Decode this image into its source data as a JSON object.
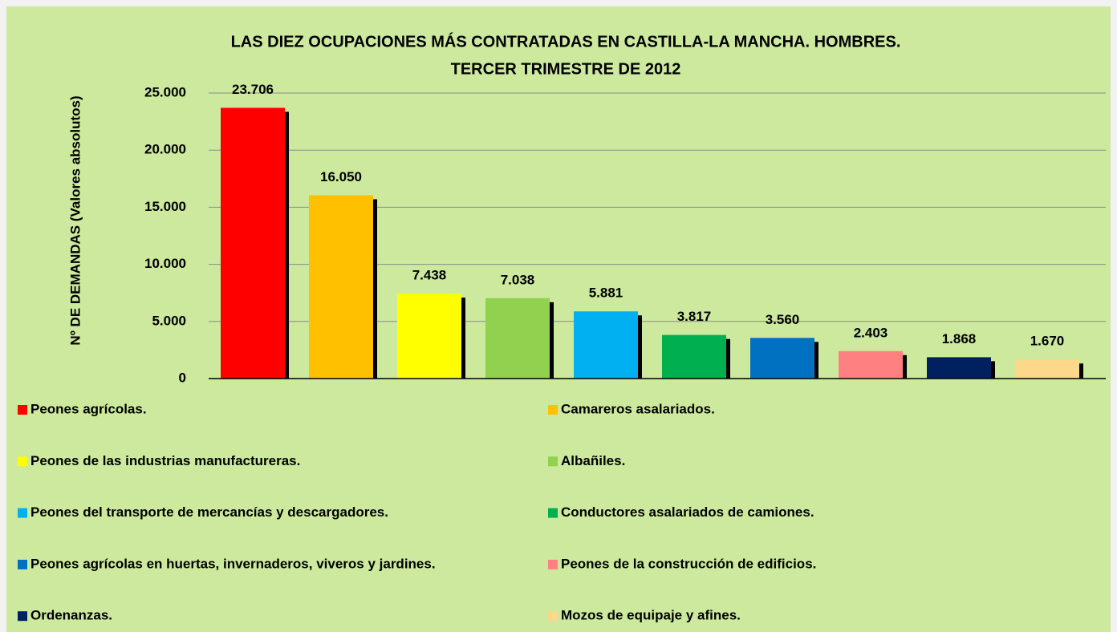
{
  "chart_data": {
    "type": "bar",
    "title": [
      "LAS DIEZ OCUPACIONES MÁS CONTRATADAS EN CASTILLA-LA MANCHA. HOMBRES.",
      "TERCER TRIMESTRE DE 2012"
    ],
    "y_label": "Nº DE DEMANDAS (Valores absolutos)",
    "categories": [
      "Peones agrícolas.",
      "Camareros asalariados.",
      "Peones de las industrias manufactureras.",
      "Albañiles.",
      "Peones del transporte de mercancías y descargadores.",
      "Conductores asalariados de camiones.",
      "Peones agrícolas en huertas, invernaderos, viveros y jardines.",
      "Peones de la construcción de edificios.",
      "Ordenanzas.",
      "Mozos de equipaje y afines."
    ],
    "values": [
      23706,
      16050,
      7438,
      7038,
      5881,
      3817,
      3560,
      2403,
      1868,
      1670
    ],
    "value_labels": [
      "23.706",
      "16.050",
      "7.438",
      "7.038",
      "5.881",
      "3.817",
      "3.560",
      "2.403",
      "1.868",
      "1.670"
    ],
    "colors": [
      "#ff0000",
      "#ffc000",
      "#ffff00",
      "#92d050",
      "#00b0f0",
      "#00b050",
      "#0070c0",
      "#ff8080",
      "#002060",
      "#fcd98a"
    ],
    "ylim": [
      0,
      25000
    ],
    "yticks": [
      0,
      {
        "value": 5000,
        "label": "5.000"
      },
      {
        "value": 10000,
        "label": "10.000"
      },
      {
        "value": 15000,
        "label": "15.000"
      },
      {
        "value": 20000,
        "label": "20.000"
      },
      {
        "value": 25000,
        "label": "25.000"
      }
    ],
    "grid": true
  }
}
